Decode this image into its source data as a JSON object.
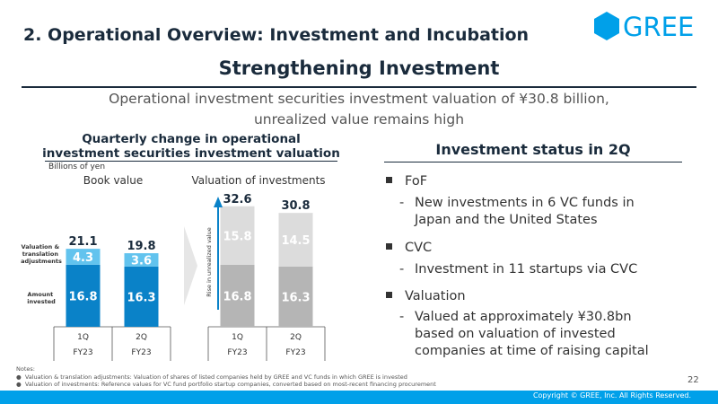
{
  "header": {
    "section_title": "2. Operational Overview: Investment and Incubation",
    "logo_text": "GREE"
  },
  "headline": "Strengthening Investment",
  "subtitle": {
    "line1": "Operational investment securities investment valuation of ¥30.8 billion,",
    "line2": "unrealized value remains high"
  },
  "left_panel": {
    "title_line1": "Quarterly change in operational",
    "title_line2": "investment securities investment valuation",
    "unit": "Billions of yen"
  },
  "chart_data": {
    "type": "bar",
    "unit": "Billions of yen",
    "left_chart": {
      "title": "Book value",
      "categories": [
        "1Q",
        "2Q"
      ],
      "period": [
        "FY23",
        "FY23"
      ],
      "series": [
        {
          "name": "Amount invested",
          "values": [
            16.8,
            16.3
          ],
          "labels": [
            "16.8",
            "16.3"
          ],
          "color": "#0a82c8"
        },
        {
          "name": "Valuation & translation adjustments",
          "values": [
            4.3,
            3.6
          ],
          "labels": [
            "4.3",
            "3.6"
          ],
          "color": "#62c3ee"
        }
      ],
      "totals": [
        "21.1",
        "19.8"
      ],
      "series_label_top": "Valuation & translation adjustments",
      "series_label_bottom": "Amount invested"
    },
    "right_chart": {
      "title": "Valuation of investments",
      "categories": [
        "1Q",
        "2Q"
      ],
      "period": [
        "FY23",
        "FY23"
      ],
      "series": [
        {
          "name": "Book value",
          "values": [
            16.8,
            16.3
          ],
          "labels": [
            "16.8",
            "16.3"
          ],
          "color": "#b5b5b5"
        },
        {
          "name": "Rise in unrealized value",
          "values": [
            15.8,
            14.5
          ],
          "labels": [
            "15.8",
            "14.5"
          ],
          "color": "#dcdcdc"
        }
      ],
      "totals": [
        "32.6",
        "30.8"
      ],
      "arrow_label": "Rise in unrealized value"
    },
    "ylim": [
      0,
      34
    ]
  },
  "right_panel": {
    "title": "Investment status in 2Q",
    "bullets": [
      {
        "label": "FoF",
        "lines": [
          "New investments in 6 VC funds in",
          "Japan and the United States"
        ]
      },
      {
        "label": "CVC",
        "lines": [
          "Investment in 11 startups via CVC"
        ]
      },
      {
        "label": "Valuation",
        "lines": [
          "Valued at approximately ¥30.8bn",
          "based on valuation of invested",
          "companies at time of raising capital"
        ]
      }
    ]
  },
  "notes": {
    "heading": "Notes:",
    "items": [
      "Valuation & translation adjustments: Valuation of shares of listed companies held by GREE and VC funds in which GREE is invested",
      "Valuation of investments: Reference values for VC fund portfolio startup companies, converted based on most-recent financing procurement"
    ]
  },
  "page_number": "22",
  "footer": {
    "copyright": "Copyright © GREE, Inc. All Rights Reserved."
  },
  "colors": {
    "accent": "#00a0e9",
    "navy": "#1a2b3c"
  }
}
